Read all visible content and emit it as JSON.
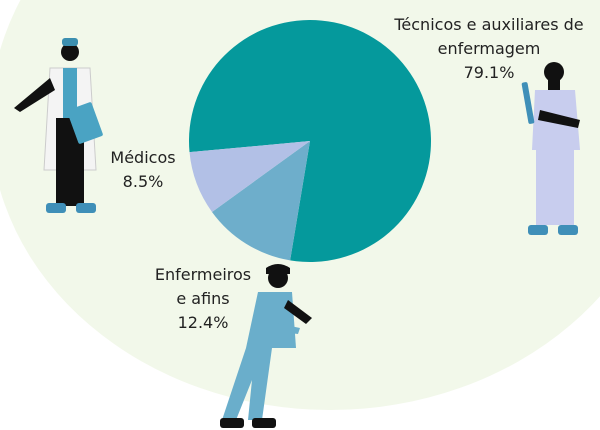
{
  "chart_data": {
    "type": "pie",
    "categories": [
      "Técnicos e auxiliares de enfermagem",
      "Enfermeiros e afins",
      "Médicos"
    ],
    "values": [
      79.1,
      12.4,
      8.5
    ],
    "value_labels": [
      "79.1%",
      "12.4%",
      "8.5%"
    ],
    "colors": [
      "#05999c",
      "#6eaecb",
      "#b2c0e6"
    ]
  }
}
